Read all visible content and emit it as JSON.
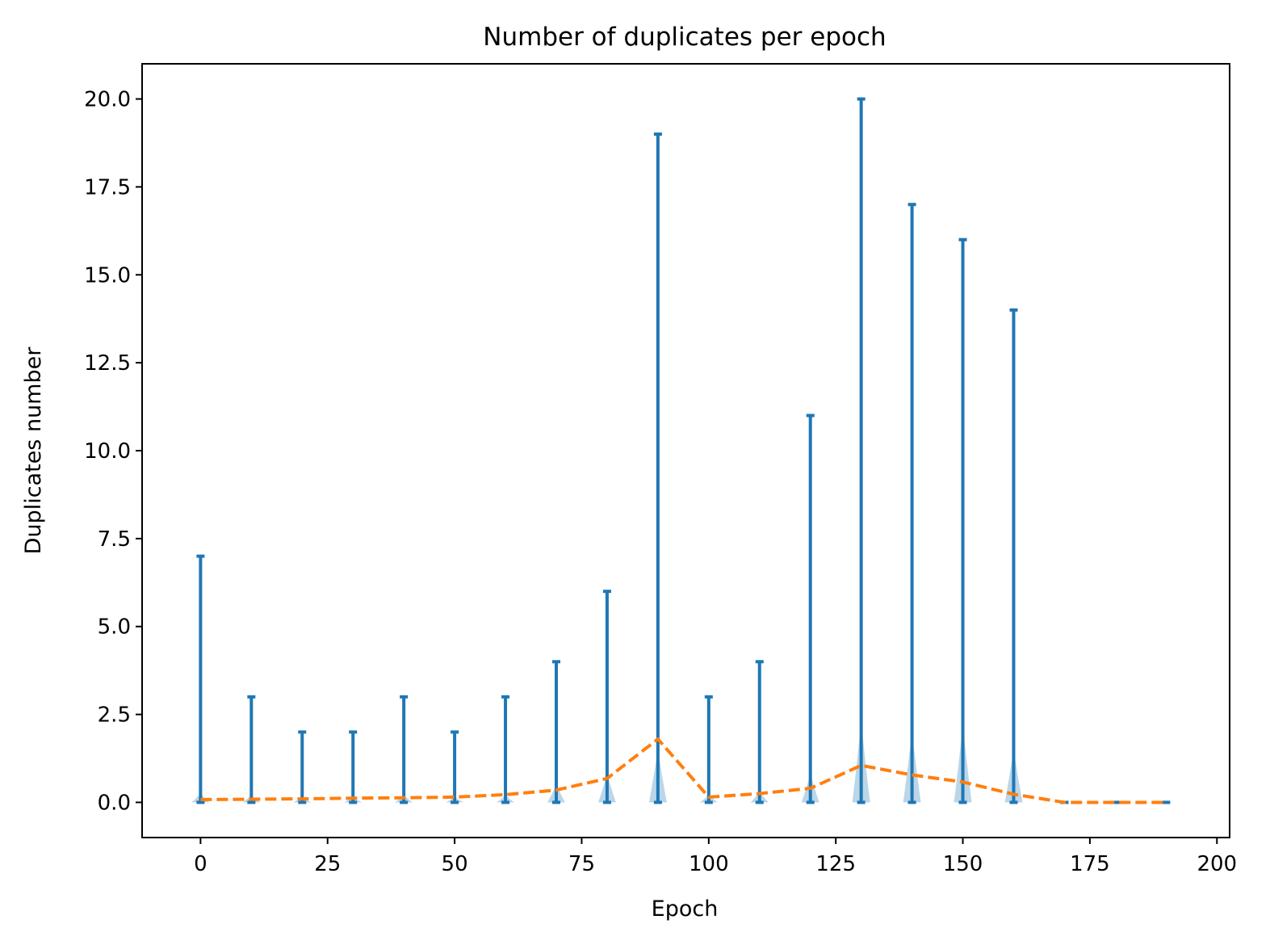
{
  "chart_data": {
    "type": "violin",
    "title": "Number of duplicates per epoch",
    "xlabel": "Epoch",
    "ylabel": "Duplicates number",
    "xlim": [
      -11.5,
      202.5
    ],
    "ylim": [
      -1.0,
      21.0
    ],
    "xticks": [
      0,
      25,
      50,
      75,
      100,
      125,
      150,
      175,
      200
    ],
    "xtick_labels": [
      "0",
      "25",
      "50",
      "75",
      "100",
      "125",
      "150",
      "175",
      "200"
    ],
    "yticks": [
      0,
      2.5,
      5,
      7.5,
      10,
      12.5,
      15,
      17.5,
      20
    ],
    "ytick_labels": [
      "0.0",
      "2.5",
      "5.0",
      "7.5",
      "10.0",
      "12.5",
      "15.0",
      "17.5",
      "20.0"
    ],
    "grid": false,
    "legend": "none",
    "epochs": [
      0,
      10,
      20,
      30,
      40,
      50,
      60,
      70,
      80,
      90,
      100,
      110,
      120,
      130,
      140,
      150,
      160,
      170,
      180,
      190
    ],
    "max_duplicates": [
      7,
      3,
      2,
      2,
      3,
      2,
      3,
      4,
      6,
      19,
      3,
      4,
      11,
      20,
      17,
      16,
      14,
      0,
      0,
      0
    ],
    "min_duplicates": [
      0,
      0,
      0,
      0,
      0,
      0,
      0,
      0,
      0,
      0,
      0,
      0,
      0,
      0,
      0,
      0,
      0,
      0,
      0,
      0
    ],
    "mean_duplicates": [
      0.08,
      0.09,
      0.1,
      0.12,
      0.13,
      0.15,
      0.22,
      0.35,
      0.68,
      1.8,
      0.15,
      0.25,
      0.4,
      1.05,
      0.78,
      0.58,
      0.23,
      0.0,
      0.0,
      0.0
    ],
    "density_heights": [
      0.25,
      0.2,
      0.15,
      0.15,
      0.2,
      0.15,
      0.2,
      0.5,
      0.8,
      1.5,
      0.2,
      0.3,
      0.8,
      2.3,
      2.0,
      2.2,
      1.5,
      0,
      0,
      0
    ],
    "colors": {
      "violin_lines": "#1f77b4",
      "violin_body": "#1f77b4",
      "mean_line": "#ff7f0e",
      "axes": "#000000"
    }
  }
}
